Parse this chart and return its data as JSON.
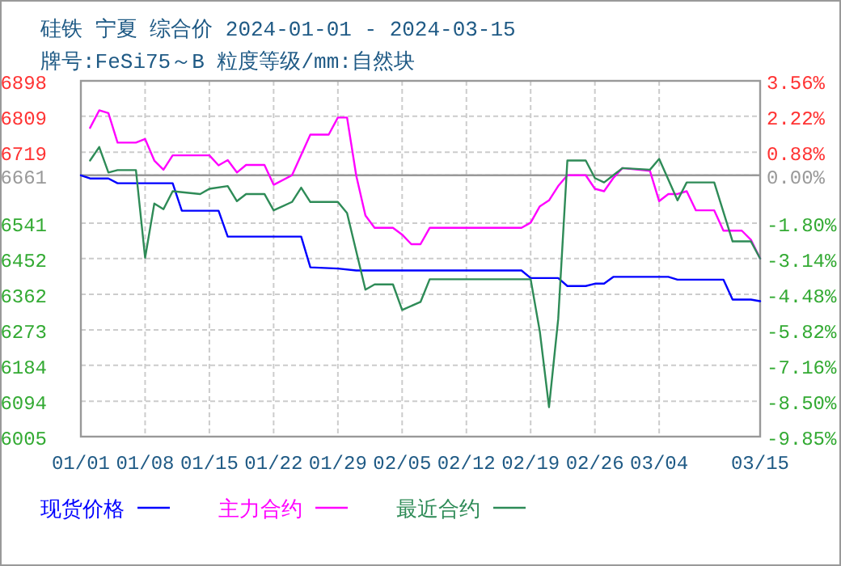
{
  "chart_data": {
    "type": "line",
    "title": "硅铁 宁夏 综合价 2024-01-01 - 2024-03-15",
    "subtitle": "牌号:FeSi75～B 粒度等级/mm:自然块",
    "xlim": [
      "2024-01-01",
      "2024-03-15"
    ],
    "xticks": [
      {
        "value": "2024-01-01",
        "label": "01/01"
      },
      {
        "value": "2024-01-08",
        "label": "01/08"
      },
      {
        "value": "2024-01-15",
        "label": "01/15"
      },
      {
        "value": "2024-01-22",
        "label": "01/22"
      },
      {
        "value": "2024-01-29",
        "label": "01/29"
      },
      {
        "value": "2024-02-05",
        "label": "02/05"
      },
      {
        "value": "2024-02-12",
        "label": "02/12"
      },
      {
        "value": "2024-02-19",
        "label": "02/19"
      },
      {
        "value": "2024-02-26",
        "label": "02/26"
      },
      {
        "value": "2024-03-04",
        "label": "03/04"
      },
      {
        "value": "2024-03-15",
        "label": "03/15"
      }
    ],
    "ylim": [
      6005,
      6898
    ],
    "yticks": [
      6898,
      6809,
      6719,
      6661,
      6541,
      6452,
      6362,
      6273,
      6184,
      6094,
      6005
    ],
    "y2lim": [
      -9.85,
      3.56
    ],
    "y2ticks": [
      {
        "value": 3.56,
        "label": "3.56%"
      },
      {
        "value": 2.22,
        "label": "2.22%"
      },
      {
        "value": 0.88,
        "label": "0.88%"
      },
      {
        "value": 0,
        "label": "0.00%"
      },
      {
        "value": -1.8,
        "label": "-1.80%"
      },
      {
        "value": -3.14,
        "label": "-3.14%"
      },
      {
        "value": -4.48,
        "label": "-4.48%"
      },
      {
        "value": -5.82,
        "label": "-5.82%"
      },
      {
        "value": -7.16,
        "label": "-7.16%"
      },
      {
        "value": -8.5,
        "label": "-8.50%"
      },
      {
        "value": -9.85,
        "label": "-9.85%"
      }
    ],
    "ref_lines": [
      {
        "axis": "y",
        "value": 6661,
        "color": "#999999"
      }
    ],
    "grid": true,
    "legend": "bottom",
    "marker": "none",
    "line_style": "solid",
    "series": [
      {
        "name": "现货价格",
        "color": "#0000ff",
        "x": [
          "2024-01-01",
          "2024-01-02",
          "2024-01-04",
          "2024-01-05",
          "2024-01-11",
          "2024-01-12",
          "2024-01-16",
          "2024-01-17",
          "2024-01-25",
          "2024-01-26",
          "2024-01-29",
          "2024-01-31",
          "2024-02-18",
          "2024-02-19",
          "2024-02-22",
          "2024-02-23",
          "2024-02-25",
          "2024-02-26",
          "2024-02-27",
          "2024-02-28",
          "2024-03-05",
          "2024-03-06",
          "2024-03-11",
          "2024-03-12",
          "2024-03-14",
          "2024-03-15"
        ],
        "values": [
          6661,
          6653,
          6653,
          6641,
          6641,
          6572,
          6572,
          6507,
          6507,
          6430,
          6427,
          6422,
          6422,
          6403,
          6403,
          6383,
          6383,
          6389,
          6389,
          6406,
          6406,
          6399,
          6399,
          6349,
          6349,
          6345
        ]
      },
      {
        "name": "主力合约",
        "color": "#ff00ff",
        "x": [
          "2024-01-02",
          "2024-01-03",
          "2024-01-04",
          "2024-01-05",
          "2024-01-07",
          "2024-01-08",
          "2024-01-09",
          "2024-01-10",
          "2024-01-11",
          "2024-01-15",
          "2024-01-16",
          "2024-01-17",
          "2024-01-18",
          "2024-01-19",
          "2024-01-21",
          "2024-01-22",
          "2024-01-24",
          "2024-01-26",
          "2024-01-28",
          "2024-01-29",
          "2024-01-30",
          "2024-01-31",
          "2024-02-01",
          "2024-02-02",
          "2024-02-04",
          "2024-02-05",
          "2024-02-06",
          "2024-02-07",
          "2024-02-08",
          "2024-02-18",
          "2024-02-19",
          "2024-02-20",
          "2024-02-21",
          "2024-02-22",
          "2024-02-23",
          "2024-02-25",
          "2024-02-26",
          "2024-02-27",
          "2024-02-28",
          "2024-02-29",
          "2024-03-03",
          "2024-03-04",
          "2024-03-05",
          "2024-03-06",
          "2024-03-07",
          "2024-03-08",
          "2024-03-10",
          "2024-03-11",
          "2024-03-13",
          "2024-03-14",
          "2024-03-15"
        ],
        "values": [
          6780,
          6824,
          6817,
          6743,
          6743,
          6752,
          6698,
          6675,
          6711,
          6711,
          6686,
          6699,
          6668,
          6687,
          6687,
          6637,
          6661,
          6763,
          6763,
          6806,
          6806,
          6660,
          6560,
          6529,
          6529,
          6512,
          6488,
          6488,
          6529,
          6529,
          6542,
          6583,
          6598,
          6634,
          6661,
          6661,
          6627,
          6621,
          6654,
          6679,
          6672,
          6596,
          6614,
          6614,
          6621,
          6573,
          6573,
          6522,
          6522,
          6499,
          6452
        ]
      },
      {
        "name": "最近合约",
        "color": "#2e8b57",
        "x": [
          "2024-01-02",
          "2024-01-03",
          "2024-01-04",
          "2024-01-05",
          "2024-01-07",
          "2024-01-08",
          "2024-01-09",
          "2024-01-10",
          "2024-01-11",
          "2024-01-14",
          "2024-01-15",
          "2024-01-17",
          "2024-01-18",
          "2024-01-19",
          "2024-01-21",
          "2024-01-22",
          "2024-01-24",
          "2024-01-25",
          "2024-01-26",
          "2024-01-29",
          "2024-01-30",
          "2024-02-01",
          "2024-02-02",
          "2024-02-04",
          "2024-02-05",
          "2024-02-07",
          "2024-02-08",
          "2024-02-19",
          "2024-02-20",
          "2024-02-21",
          "2024-02-22",
          "2024-02-23",
          "2024-02-25",
          "2024-02-26",
          "2024-02-27",
          "2024-02-29",
          "2024-03-03",
          "2024-03-04",
          "2024-03-06",
          "2024-03-07",
          "2024-03-10",
          "2024-03-12",
          "2024-03-14",
          "2024-03-15"
        ],
        "values": [
          6698,
          6732,
          6668,
          6674,
          6674,
          6454,
          6590,
          6576,
          6621,
          6614,
          6627,
          6634,
          6596,
          6614,
          6614,
          6573,
          6594,
          6630,
          6594,
          6594,
          6566,
          6374,
          6387,
          6387,
          6323,
          6343,
          6400,
          6400,
          6269,
          6079,
          6300,
          6698,
          6698,
          6654,
          6643,
          6679,
          6675,
          6702,
          6598,
          6643,
          6643,
          6495,
          6495,
          6452
        ]
      }
    ]
  }
}
